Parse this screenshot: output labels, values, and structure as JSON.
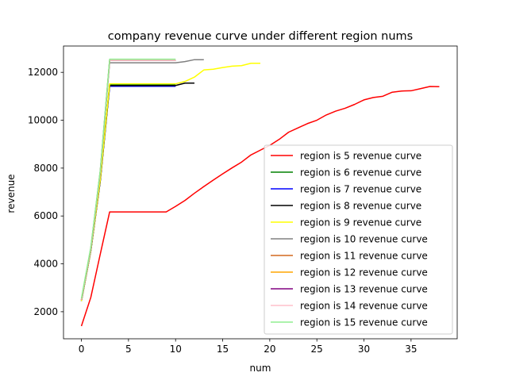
{
  "chart_data": {
    "type": "line",
    "title": "company revenue curve under different region nums",
    "xlabel": "num",
    "ylabel": "revenue",
    "xlim": [
      -1.9,
      39.9
    ],
    "ylim": [
      870,
      13100
    ],
    "xticks": [
      0,
      5,
      10,
      15,
      20,
      25,
      30,
      35
    ],
    "yticks": [
      2000,
      4000,
      6000,
      8000,
      10000,
      12000
    ],
    "grid": false,
    "legend_position": "lower-right",
    "series": [
      {
        "name": "region is 5 revenue curve",
        "color": "#ff0000",
        "x": [
          0,
          1,
          2,
          3,
          4,
          5,
          6,
          7,
          8,
          9,
          10,
          11,
          12,
          13,
          14,
          15,
          16,
          17,
          18,
          19,
          20,
          21,
          22,
          23,
          24,
          25,
          26,
          27,
          28,
          29,
          30,
          31,
          32,
          33,
          34,
          35,
          36,
          37,
          38
        ],
        "y": [
          1400,
          2600,
          4400,
          6170,
          6170,
          6170,
          6170,
          6170,
          6170,
          6170,
          6400,
          6650,
          6950,
          7230,
          7500,
          7760,
          8010,
          8250,
          8550,
          8750,
          8950,
          9200,
          9500,
          9680,
          9860,
          10000,
          10220,
          10380,
          10500,
          10660,
          10850,
          10950,
          11000,
          11170,
          11220,
          11230,
          11320,
          11410,
          11400
        ]
      },
      {
        "name": "region is 6 revenue curve",
        "color": "#008000",
        "x": [
          0,
          1,
          2,
          3,
          4,
          5,
          6,
          7,
          8,
          9,
          10
        ],
        "y": [
          2450,
          4550,
          7500,
          11500,
          11500,
          11500,
          11500,
          11500,
          11500,
          11500,
          11500
        ]
      },
      {
        "name": "region is 7 revenue curve",
        "color": "#0000ff",
        "x": [
          0,
          1,
          2,
          3,
          4,
          5,
          6,
          7,
          8,
          9,
          10
        ],
        "y": [
          2450,
          4550,
          7450,
          11420,
          11420,
          11420,
          11420,
          11420,
          11420,
          11420,
          11420
        ]
      },
      {
        "name": "region is 8 revenue curve",
        "color": "#000000",
        "x": [
          0,
          1,
          2,
          3,
          4,
          5,
          6,
          7,
          8,
          9,
          10,
          11,
          12
        ],
        "y": [
          2450,
          4550,
          7450,
          11450,
          11450,
          11450,
          11450,
          11450,
          11450,
          11450,
          11450,
          11550,
          11550
        ]
      },
      {
        "name": "region is 9 revenue curve",
        "color": "#ffff00",
        "x": [
          0,
          1,
          2,
          3,
          4,
          5,
          6,
          7,
          8,
          9,
          10,
          11,
          12,
          13,
          14,
          15,
          16,
          17,
          18,
          19
        ],
        "y": [
          2450,
          4550,
          7500,
          11520,
          11520,
          11520,
          11520,
          11520,
          11520,
          11520,
          11520,
          11620,
          11800,
          12100,
          12130,
          12200,
          12260,
          12280,
          12380,
          12380
        ]
      },
      {
        "name": "region is 10 revenue curve",
        "color": "#808080",
        "x": [
          0,
          1,
          2,
          3,
          4,
          5,
          6,
          7,
          8,
          9,
          10,
          11,
          12,
          13
        ],
        "y": [
          2500,
          4600,
          7800,
          12400,
          12400,
          12400,
          12400,
          12400,
          12400,
          12400,
          12400,
          12450,
          12530,
          12530
        ]
      },
      {
        "name": "region is 11 revenue curve",
        "color": "#d2691e",
        "x": [
          0,
          1,
          2,
          3,
          4,
          5,
          6,
          7,
          8,
          9,
          10
        ],
        "y": [
          2500,
          4650,
          7850,
          12500,
          12500,
          12500,
          12500,
          12500,
          12500,
          12500,
          12500
        ]
      },
      {
        "name": "region is 12 revenue curve",
        "color": "#ffa500",
        "x": [
          0,
          1,
          2,
          3,
          4,
          5,
          6,
          7,
          8,
          9,
          10
        ],
        "y": [
          2500,
          4650,
          7850,
          12500,
          12500,
          12500,
          12500,
          12500,
          12500,
          12500,
          12500
        ]
      },
      {
        "name": "region is 13 revenue curve",
        "color": "#800080",
        "x": [
          0,
          1,
          2,
          3,
          4,
          5,
          6,
          7,
          8,
          9,
          10
        ],
        "y": [
          2500,
          4650,
          7850,
          12500,
          12500,
          12500,
          12500,
          12500,
          12500,
          12500,
          12500
        ]
      },
      {
        "name": "region is 14 revenue curve",
        "color": "#ffc0cb",
        "x": [
          0,
          1,
          2,
          3,
          4,
          5,
          6,
          7,
          8,
          9,
          10
        ],
        "y": [
          2500,
          4650,
          7850,
          12500,
          12500,
          12500,
          12500,
          12500,
          12500,
          12500,
          12500
        ]
      },
      {
        "name": "region is 15 revenue curve",
        "color": "#90ee90",
        "x": [
          0,
          1,
          2,
          3,
          4,
          5,
          6,
          7,
          8,
          9,
          10
        ],
        "y": [
          2550,
          4700,
          7900,
          12550,
          12550,
          12550,
          12550,
          12550,
          12550,
          12550,
          12550
        ]
      }
    ]
  }
}
